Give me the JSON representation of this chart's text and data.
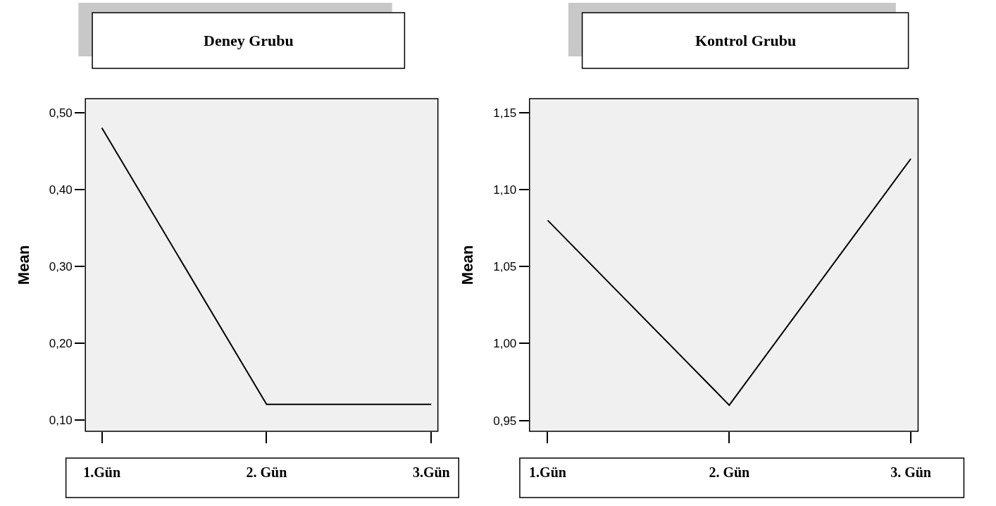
{
  "chart_data": [
    {
      "type": "line",
      "title": "Deney Grubu",
      "ylabel": "Mean",
      "categories": [
        "1.Gün",
        "2. Gün",
        "3.Gün"
      ],
      "values": [
        0.48,
        0.12,
        0.12
      ],
      "color": "#000000",
      "ylim": [
        0.085,
        0.518
      ],
      "yticks": [
        {
          "value": 0.1,
          "label": "0,10"
        },
        {
          "value": 0.2,
          "label": "0,20"
        },
        {
          "value": 0.3,
          "label": "0,30"
        },
        {
          "value": 0.4,
          "label": "0,40"
        },
        {
          "value": 0.5,
          "label": "0,50"
        }
      ],
      "marker": "none",
      "line_style": "solid",
      "grid": false
    },
    {
      "type": "line",
      "title": "Kontrol Grubu",
      "ylabel": "Mean",
      "categories": [
        "1.Gün",
        "2. Gün",
        "3. Gün"
      ],
      "values": [
        1.08,
        0.96,
        1.12
      ],
      "color": "#000000",
      "ylim": [
        0.943,
        1.159
      ],
      "yticks": [
        {
          "value": 0.95,
          "label": "0,95"
        },
        {
          "value": 1.0,
          "label": "1,00"
        },
        {
          "value": 1.05,
          "label": "1,05"
        },
        {
          "value": 1.1,
          "label": "1,10"
        },
        {
          "value": 1.15,
          "label": "1,15"
        }
      ],
      "marker": "none",
      "line_style": "solid",
      "grid": false
    }
  ]
}
